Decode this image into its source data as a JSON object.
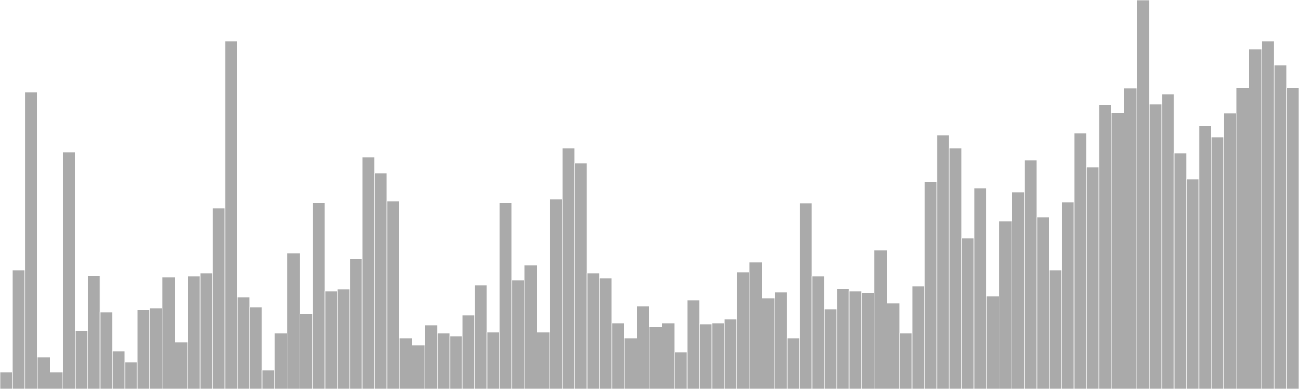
{
  "chart_data": {
    "type": "bar",
    "title": "",
    "xlabel": "",
    "ylabel": "",
    "grid": false,
    "legend": "none",
    "colors": {
      "bar_fill": "#aaaaaa",
      "bar_stroke": "#ffffff",
      "background": "#ffffff"
    },
    "ylim": [
      0,
      480
    ],
    "values": [
      21,
      147,
      366,
      39,
      21,
      292,
      72,
      140,
      95,
      47,
      33,
      98,
      100,
      138,
      58,
      139,
      143,
      223,
      429,
      113,
      101,
      23,
      69,
      168,
      93,
      230,
      121,
      123,
      161,
      286,
      266,
      232,
      63,
      54,
      79,
      69,
      65,
      91,
      128,
      70,
      230,
      134,
      153,
      70,
      234,
      297,
      279,
      143,
      137,
      81,
      63,
      102,
      77,
      81,
      46,
      110,
      80,
      81,
      86,
      144,
      157,
      112,
      120,
      63,
      229,
      139,
      99,
      124,
      121,
      119,
      171,
      106,
      69,
      127,
      256,
      313,
      297,
      186,
      248,
      115,
      207,
      243,
      282,
      212,
      147,
      231,
      316,
      274,
      351,
      341,
      371,
      480,
      352,
      364,
      291,
      259,
      325,
      311,
      340,
      372,
      419,
      429,
      400,
      372
    ]
  }
}
